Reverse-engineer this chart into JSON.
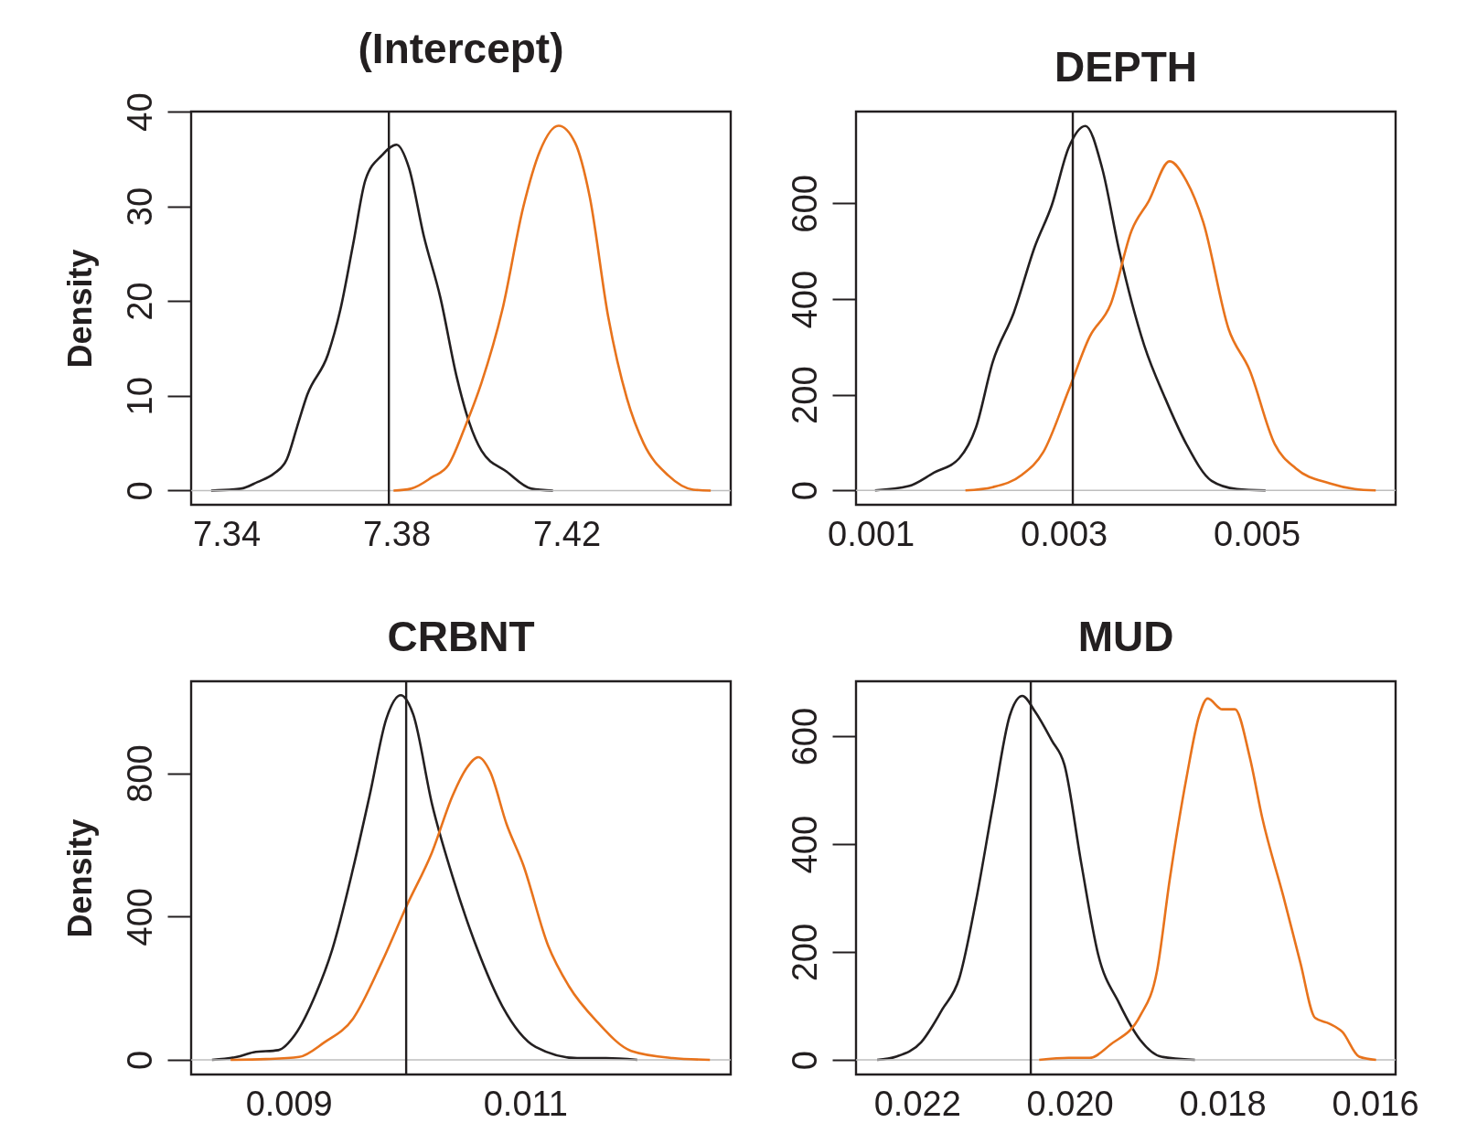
{
  "chart_data": [
    {
      "type": "line",
      "title": "(Intercept)",
      "ylabel": "Density",
      "xlim": [
        7.3317,
        7.4586
      ],
      "ylim": [
        -1.5,
        40
      ],
      "xticks": [
        7.34,
        7.38,
        7.42
      ],
      "yticks": [
        0,
        10,
        20,
        30,
        40
      ],
      "grid": false,
      "series": [
        {
          "color": "#231f20",
          "x": [
            7.3364,
            7.3434,
            7.3473,
            7.3512,
            7.3542,
            7.3566,
            7.359,
            7.3639,
            7.3668,
            7.3698,
            7.3727,
            7.3766,
            7.38,
            7.3829,
            7.3864,
            7.3903,
            7.3942,
            7.3971,
            7.4,
            7.4059,
            7.4117,
            7.4168
          ],
          "values": [
            0,
            0.2,
            0.9,
            1.8,
            3.3,
            6.7,
            10.1,
            14.4,
            19.1,
            26.0,
            32.8,
            35.4,
            36.5,
            34.1,
            26.9,
            20.4,
            11.9,
            7.2,
            4.2,
            2.0,
            0.2,
            0
          ]
        },
        {
          "color": "#e8731c",
          "x": [
            7.3793,
            7.3834,
            7.3883,
            7.3922,
            7.3961,
            7.4,
            7.4049,
            7.4098,
            7.4137,
            7.4181,
            7.422,
            7.4254,
            7.4298,
            7.4342,
            7.4381,
            7.4439,
            7.4498,
            7.4539
          ],
          "values": [
            0,
            0.2,
            1.4,
            2.7,
            6.7,
            11.4,
            19.1,
            29.9,
            35.8,
            38.5,
            36.7,
            31.1,
            18.3,
            9.7,
            5.0,
            1.6,
            0.1,
            0
          ]
        }
      ],
      "ref_lines": [
        {
          "axis": "y",
          "value": 0,
          "color": "#bebebe"
        },
        {
          "axis": "x",
          "value": 7.3782,
          "color": "#231f20"
        }
      ]
    },
    {
      "type": "line",
      "title": "DEPTH",
      "xlim": [
        0.000847,
        0.00644
      ],
      "ylim": [
        -30,
        792
      ],
      "xticks": [
        0.001,
        0.003,
        0.005
      ],
      "yticks": [
        0,
        200,
        400,
        600
      ],
      "grid": false,
      "series": [
        {
          "color": "#231f20",
          "x": [
            0.001044,
            0.001393,
            0.001654,
            0.001916,
            0.002091,
            0.002265,
            0.002483,
            0.002701,
            0.002876,
            0.00305,
            0.003225,
            0.003399,
            0.003574,
            0.003835,
            0.004053,
            0.004271,
            0.004533,
            0.004795,
            0.005092
          ],
          "values": [
            0,
            9,
            37,
            67,
            132,
            269,
            372,
            510,
            596,
            716,
            762,
            673,
            502,
            303,
            192,
            97,
            20,
            3,
            0
          ]
        },
        {
          "color": "#e8731c",
          "x": [
            0.001981,
            0.002265,
            0.00257,
            0.002788,
            0.00305,
            0.003268,
            0.003486,
            0.003705,
            0.003879,
            0.004097,
            0.004272,
            0.004446,
            0.004708,
            0.004926,
            0.005187,
            0.005406,
            0.005755,
            0.006016,
            0.006234
          ],
          "values": [
            0,
            7,
            33,
            80,
            209,
            321,
            389,
            544,
            604,
            688,
            647,
            561,
            338,
            252,
            97,
            46,
            15,
            3,
            0
          ]
        }
      ],
      "ref_lines": [
        {
          "axis": "y",
          "value": 0,
          "color": "#bebebe"
        },
        {
          "axis": "x",
          "value": 0.003094,
          "color": "#231f20"
        }
      ]
    },
    {
      "type": "line",
      "title": "CRBNT",
      "ylabel": "Density",
      "xlim": [
        0.008175,
        0.012737
      ],
      "ylim": [
        -41,
        1057
      ],
      "xticks": [
        0.009,
        0.011
      ],
      "yticks": [
        0,
        400,
        800
      ],
      "grid": false,
      "series": [
        {
          "color": "#231f20",
          "x": [
            0.008351,
            0.008561,
            0.008702,
            0.008912,
            0.009053,
            0.009228,
            0.009368,
            0.009544,
            0.009684,
            0.009825,
            0.009947,
            0.010053,
            0.010211,
            0.010386,
            0.010596,
            0.010807,
            0.011088,
            0.011439,
            0.011684,
            0.011947
          ],
          "values": [
            0,
            8,
            21,
            27,
            70,
            183,
            308,
            534,
            738,
            952,
            1018,
            964,
            715,
            511,
            308,
            149,
            36,
            5,
            5,
            0
          ]
        },
        {
          "color": "#e8731c",
          "x": [
            0.008509,
            0.008807,
            0.009088,
            0.009298,
            0.009544,
            0.009789,
            0.01,
            0.010211,
            0.010386,
            0.010509,
            0.010603,
            0.010702,
            0.010842,
            0.010982,
            0.011193,
            0.011368,
            0.011614,
            0.011895,
            0.012246,
            0.012561
          ],
          "values": [
            0,
            2,
            8,
            48,
            115,
            274,
            432,
            579,
            738,
            817,
            845,
            805,
            658,
            545,
            319,
            206,
            104,
            25,
            5,
            0
          ]
        }
      ],
      "ref_lines": [
        {
          "axis": "y",
          "value": 0,
          "color": "#bebebe"
        },
        {
          "axis": "x",
          "value": 0.009993,
          "color": "#231f20"
        }
      ]
    },
    {
      "type": "line",
      "title": "MUD",
      "xlim": [
        0.0228,
        0.01573
      ],
      "ylim": [
        -27,
        702
      ],
      "xticks": [
        0.022,
        {
          "value": 0.02,
          "label": "0.020"
        },
        0.018,
        0.016
      ],
      "yticks": [
        0,
        200,
        400,
        600
      ],
      "grid": false,
      "series": [
        {
          "color": "#231f20",
          "x": [
            0.022524,
            0.022276,
            0.021945,
            0.021669,
            0.021448,
            0.021228,
            0.021007,
            0.020786,
            0.020621,
            0.020455,
            0.020234,
            0.020069,
            0.019848,
            0.019628,
            0.019352,
            0.019076,
            0.0188,
            0.018359
          ],
          "values": [
            0,
            6,
            33,
            94,
            151,
            295,
            471,
            638,
            675,
            646,
            592,
            547,
            364,
            196,
            105,
            37,
            6,
            0
          ]
        },
        {
          "color": "#e8731c",
          "x": [
            0.0204,
            0.020014,
            0.019738,
            0.019462,
            0.019076,
            0.018855,
            0.01869,
            0.018469,
            0.018304,
            0.018193,
            0.018,
            0.017835,
            0.017642,
            0.017476,
            0.0172,
            0.016979,
            0.016786,
            0.016593,
            0.016428,
            0.016207,
            0.015986
          ],
          "values": [
            0,
            4,
            4,
            29,
            82,
            166,
            334,
            524,
            638,
            670,
            650,
            650,
            562,
            448,
            303,
            181,
            78,
            67,
            52,
            6,
            0
          ]
        }
      ],
      "ref_lines": [
        {
          "axis": "y",
          "value": 0,
          "color": "#bebebe"
        },
        {
          "axis": "x",
          "value": 0.02051,
          "color": "#231f20"
        }
      ]
    }
  ]
}
